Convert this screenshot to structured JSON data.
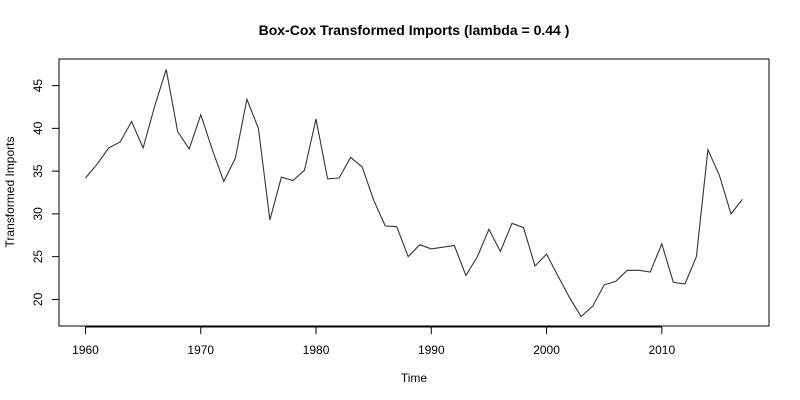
{
  "chart_data": {
    "type": "line",
    "title": "Box-Cox Transformed Imports (lambda = 0.44 )",
    "xlabel": "Time",
    "ylabel": "Transformed Imports",
    "xlim": [
      1960,
      2017
    ],
    "ylim": [
      18,
      47
    ],
    "x_ticks": [
      1960,
      1970,
      1980,
      1990,
      2000,
      2010
    ],
    "y_ticks": [
      20,
      25,
      30,
      35,
      40,
      45
    ],
    "grid": false,
    "series": [
      {
        "line_color": "#333333",
        "x": [
          1960,
          1961,
          1962,
          1963,
          1964,
          1965,
          1966,
          1967,
          1968,
          1969,
          1970,
          1971,
          1972,
          1973,
          1974,
          1975,
          1976,
          1977,
          1978,
          1979,
          1980,
          1981,
          1982,
          1983,
          1984,
          1985,
          1986,
          1987,
          1988,
          1989,
          1990,
          1991,
          1992,
          1993,
          1994,
          1995,
          1996,
          1997,
          1998,
          1999,
          2000,
          2001,
          2002,
          2003,
          2004,
          2005,
          2006,
          2007,
          2008,
          2009,
          2010,
          2011,
          2012,
          2013,
          2014,
          2015,
          2016,
          2017
        ],
        "y": [
          34.2,
          35.8,
          37.7,
          38.4,
          40.8,
          37.7,
          42.6,
          46.9,
          39.6,
          37.6,
          41.6,
          37.5,
          33.8,
          36.5,
          43.4,
          40.0,
          29.3,
          34.3,
          33.9,
          35.1,
          41.1,
          34.1,
          34.2,
          36.6,
          35.5,
          31.6,
          28.6,
          28.5,
          25.0,
          26.4,
          25.9,
          26.1,
          26.3,
          22.8,
          25.0,
          28.2,
          25.6,
          28.9,
          28.4,
          23.9,
          25.3,
          22.7,
          20.2,
          18.0,
          19.2,
          21.7,
          22.1,
          23.4,
          23.4,
          23.2,
          26.5,
          22.0,
          21.8,
          25.0,
          37.5,
          34.5,
          30.0,
          31.7
        ]
      }
    ]
  }
}
